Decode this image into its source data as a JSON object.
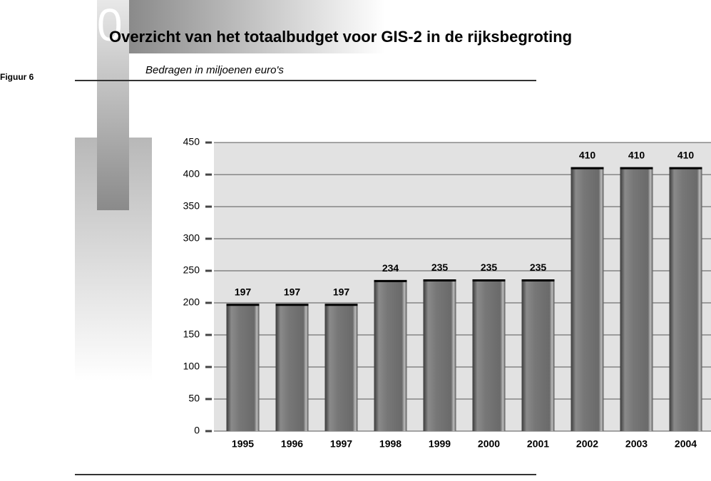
{
  "chart_data": {
    "type": "bar",
    "chapter_number": "0",
    "figure_label": "Figuur 6",
    "title": "Overzicht van het totaalbudget voor GIS-2 in de rijksbegroting",
    "subtitle": "Bedragen in miljoenen euro's",
    "categories": [
      "1995",
      "1996",
      "1997",
      "1998",
      "1999",
      "2000",
      "2001",
      "2002",
      "2003",
      "2004"
    ],
    "values": [
      197,
      197,
      197,
      234,
      235,
      235,
      235,
      410,
      410,
      410
    ],
    "color": "#7a7a7a",
    "ylim": [
      0,
      450
    ],
    "yticks": [
      0,
      50,
      100,
      150,
      200,
      250,
      300,
      350,
      400,
      450
    ],
    "grid": true
  }
}
